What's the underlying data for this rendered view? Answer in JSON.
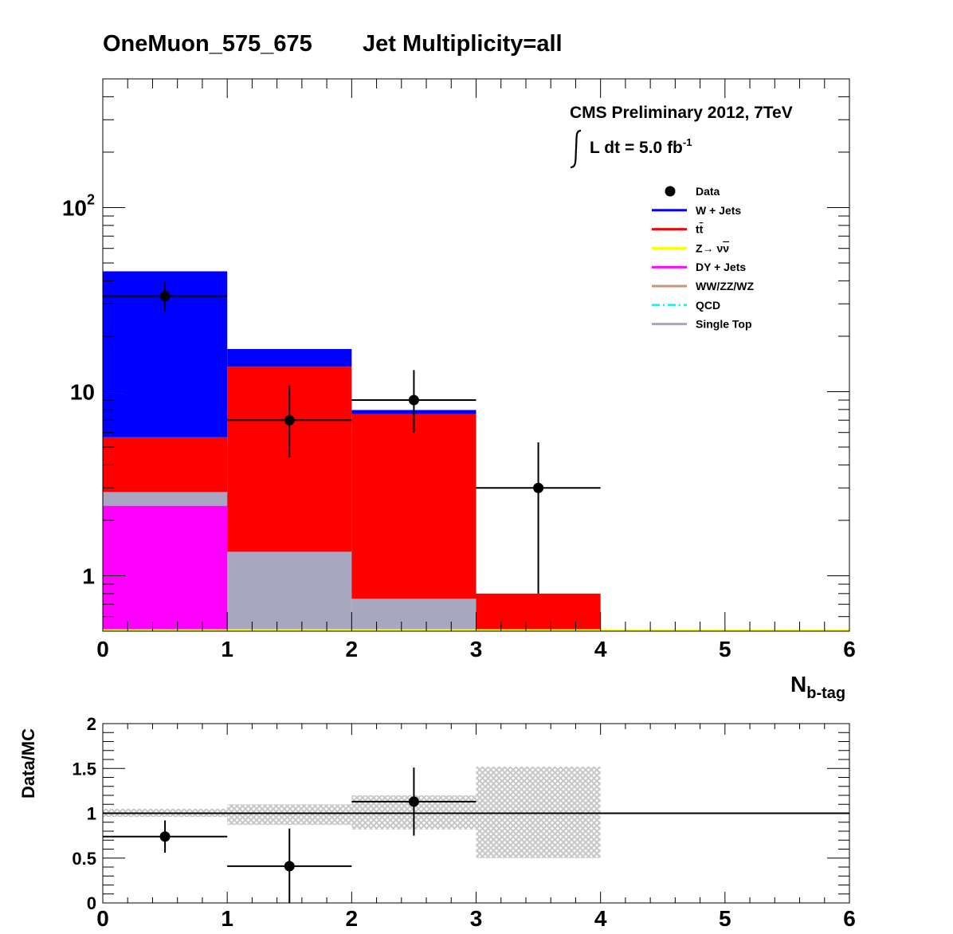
{
  "title": {
    "region": "OneMuon_575_675",
    "selection": "Jet Multiplicity=all"
  },
  "annotation": {
    "experiment": "CMS Preliminary 2012, 7TeV",
    "lumi_text": "L dt = 5.0 fb",
    "lumi_exp": "-1"
  },
  "colors": {
    "wjets": "#0000ff",
    "ttbar": "#ff0000",
    "znunu": "#ffff00",
    "dy": "#ff00ff",
    "diboson": "#c8967a",
    "qcd": "#00ffff",
    "singletop": "#a8a6c0",
    "band": "#c6c6c6"
  },
  "chart_data": [
    {
      "type": "bar",
      "stacked": true,
      "log_y": true,
      "xlabel": "N",
      "xlabel_sub": "b-tag",
      "ylabel": "",
      "xlim": [
        0,
        6
      ],
      "ylim": [
        0.5,
        500
      ],
      "x_ticks": [
        "0",
        "1",
        "2",
        "3",
        "4",
        "5",
        "6"
      ],
      "y_ticks": [
        {
          "value": 1,
          "label": "1",
          "exp": ""
        },
        {
          "value": 10,
          "label": "10",
          "exp": ""
        },
        {
          "value": 100,
          "label": "10",
          "exp": "2"
        }
      ],
      "bin_edges": [
        0,
        1,
        2,
        3,
        4,
        5,
        6
      ],
      "legend_position": "top-right",
      "stack": [
        {
          "key": "dy",
          "values": [
            2.4,
            0.0,
            0.0,
            0.0,
            0.0,
            0.0
          ]
        },
        {
          "key": "singletop",
          "values": [
            0.45,
            1.35,
            0.75,
            0.0,
            0.0,
            0.0
          ]
        },
        {
          "key": "ttbar",
          "values": [
            2.8,
            12.3,
            6.8,
            0.8,
            0.0,
            0.0
          ]
        },
        {
          "key": "wjets",
          "values": [
            39.4,
            3.4,
            0.4,
            0.0,
            0.0,
            0.0
          ]
        }
      ],
      "totals": [
        45.0,
        17.0,
        8.0,
        0.8,
        0.0,
        0.0
      ],
      "data": {
        "x": [
          0.5,
          1.5,
          2.5,
          3.5
        ],
        "y": [
          33,
          7,
          9,
          3
        ],
        "err_low": [
          5.7,
          2.6,
          3.0,
          2.2
        ],
        "err_high": [
          6.6,
          3.8,
          4.1,
          2.3
        ],
        "x_err": [
          0.5,
          0.5,
          0.5,
          0.5
        ]
      },
      "legend": [
        {
          "key": "data",
          "label": "Data",
          "style": "marker"
        },
        {
          "key": "wjets",
          "label": "W + Jets",
          "style": "line"
        },
        {
          "key": "ttbar",
          "label": "tt",
          "bar": true,
          "style": "line"
        },
        {
          "key": "znunu",
          "label": "Z→ νν",
          "bar": true,
          "style": "line"
        },
        {
          "key": "dy",
          "label": "DY + Jets",
          "style": "line"
        },
        {
          "key": "diboson",
          "label": "WW/ZZ/WZ",
          "style": "line"
        },
        {
          "key": "qcd",
          "label": "QCD",
          "style": "dashdot"
        },
        {
          "key": "singletop",
          "label": "Single Top",
          "style": "line"
        }
      ]
    },
    {
      "type": "scatter",
      "ylabel": "Data/MC",
      "xlim": [
        0,
        6
      ],
      "ylim": [
        0,
        2
      ],
      "x_ticks": [
        "0",
        "1",
        "2",
        "3",
        "4",
        "5",
        "6"
      ],
      "y_ticks": [
        {
          "value": 0,
          "label": "0"
        },
        {
          "value": 0.5,
          "label": "0.5"
        },
        {
          "value": 1,
          "label": "1"
        },
        {
          "value": 1.5,
          "label": "1.5"
        },
        {
          "value": 2,
          "label": "2"
        }
      ],
      "reference_line": 1,
      "ratio": {
        "x": [
          0.5,
          1.5,
          2.5
        ],
        "y": [
          0.74,
          0.41,
          1.13
        ],
        "err_low": [
          0.18,
          0.41,
          0.38
        ],
        "err_high": [
          0.18,
          0.42,
          0.38
        ],
        "x_err": [
          0.5,
          0.5,
          0.5
        ]
      },
      "uncertainty_band": [
        {
          "x0": 0,
          "x1": 1,
          "low": 0.96,
          "high": 1.05
        },
        {
          "x0": 1,
          "x1": 2,
          "low": 0.87,
          "high": 1.1
        },
        {
          "x0": 2,
          "x1": 3,
          "low": 0.82,
          "high": 1.2
        },
        {
          "x0": 3,
          "x1": 4,
          "low": 0.5,
          "high": 1.52
        }
      ]
    }
  ]
}
